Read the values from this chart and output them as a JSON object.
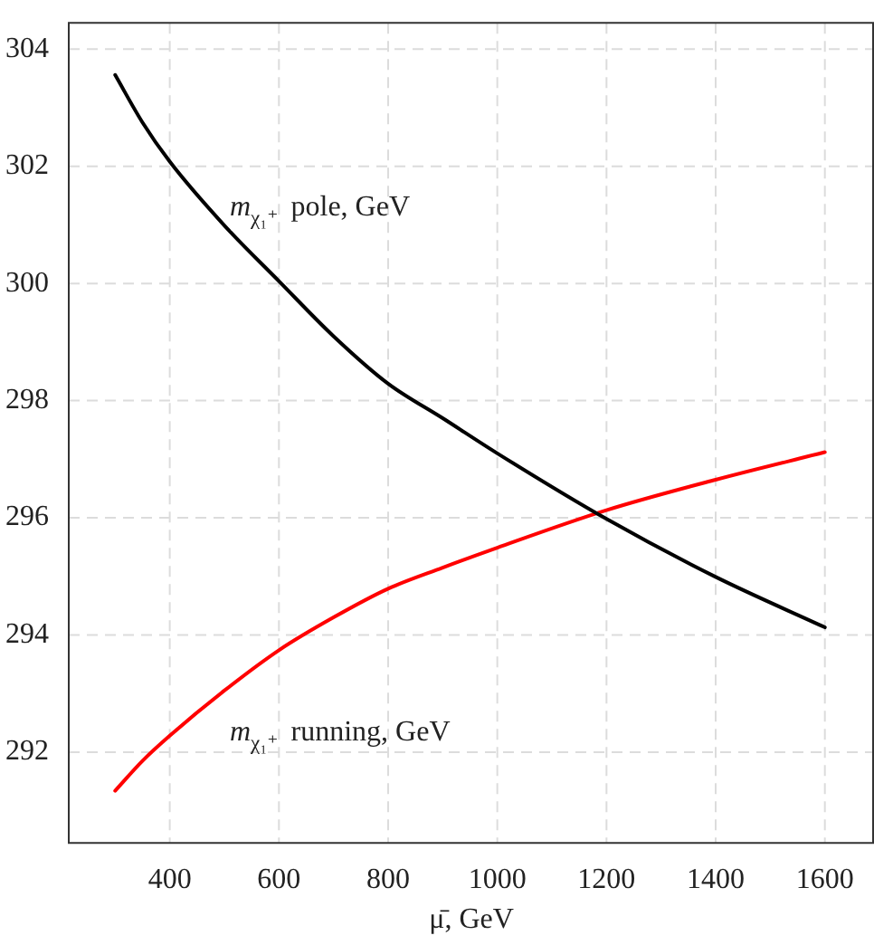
{
  "chart_data": {
    "type": "line",
    "xlabel": "μ̄, GeV",
    "x": [
      300,
      350,
      400,
      500,
      600,
      700,
      800,
      900,
      1000,
      1200,
      1400,
      1600
    ],
    "series": [
      {
        "color": "#000000",
        "values": [
          303.56,
          302.75,
          302.08,
          300.99,
          300.04,
          299.1,
          298.29,
          297.7,
          297.1,
          295.98,
          294.99,
          294.13
        ]
      },
      {
        "color": "#ff0000",
        "values": [
          291.34,
          291.85,
          292.28,
          293.05,
          293.74,
          294.3,
          294.79,
          295.15,
          295.49,
          296.13,
          296.65,
          297.12
        ]
      }
    ],
    "xlim": [
      215,
      1690
    ],
    "xticks": [
      400,
      600,
      800,
      1000,
      1200,
      1400,
      1600
    ],
    "ylim": [
      290.45,
      304.45
    ],
    "yticks": [
      292,
      294,
      296,
      298,
      300,
      302,
      304
    ],
    "grid": true,
    "legend": false,
    "marker": "none",
    "line_style": "solid",
    "annotations": [
      "m$_{χ₁⁺}$ pole, GeV",
      "m$_{χ₁⁺}$ running, GeV"
    ]
  }
}
